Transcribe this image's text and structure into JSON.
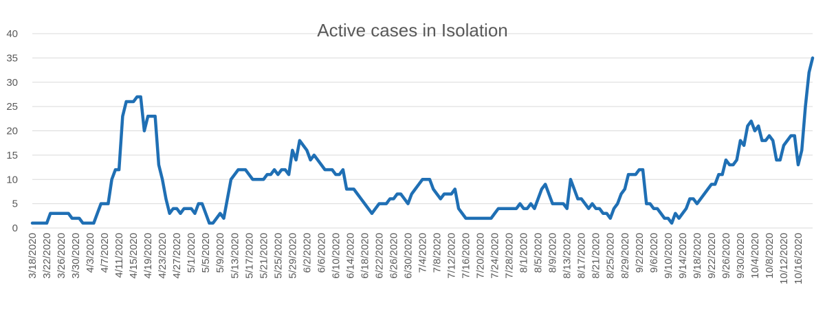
{
  "chart_data": {
    "type": "line",
    "title": "Active cases in Isolation",
    "xlabel": "",
    "ylabel": "",
    "ylim": [
      0,
      40
    ],
    "yticks": [
      "0",
      "5",
      "10",
      "15",
      "20",
      "25",
      "30",
      "35",
      "40"
    ],
    "grid": true,
    "legend": "none",
    "start_date": "2020-03-18",
    "tick_labels": [
      "3/18/2020",
      "3/22/2020",
      "3/26/2020",
      "3/30/2020",
      "4/3/2020",
      "4/7/2020",
      "4/11/2020",
      "4/15/2020",
      "4/19/2020",
      "4/23/2020",
      "4/27/2020",
      "5/1/2020",
      "5/5/2020",
      "5/9/2020",
      "5/13/2020",
      "5/17/2020",
      "5/21/2020",
      "5/25/2020",
      "5/29/2020",
      "6/2/2020",
      "6/6/2020",
      "6/10/2020",
      "6/14/2020",
      "6/18/2020",
      "6/22/2020",
      "6/26/2020",
      "6/30/2020",
      "7/4/2020",
      "7/8/2020",
      "7/12/2020",
      "7/16/2020",
      "7/20/2020",
      "7/24/2020",
      "7/28/2020",
      "8/1/2020",
      "8/5/2020",
      "8/9/2020",
      "8/13/2020",
      "8/17/2020",
      "8/21/2020",
      "8/25/2020",
      "8/29/2020",
      "9/2/2020",
      "9/6/2020",
      "9/10/2020",
      "9/14/2020",
      "9/18/2020",
      "9/22/2020",
      "9/26/2020",
      "9/30/2020",
      "10/4/2020",
      "10/8/2020",
      "10/12/2020",
      "10/16/2020"
    ],
    "series": [
      {
        "color": "#1f6fb4",
        "values": [
          1,
          1,
          1,
          1,
          1,
          3,
          3,
          3,
          3,
          3,
          3,
          2,
          2,
          2,
          1,
          1,
          1,
          1,
          3,
          5,
          5,
          5,
          10,
          12,
          12,
          23,
          26,
          26,
          26,
          27,
          27,
          20,
          23,
          23,
          23,
          13,
          10,
          6,
          3,
          4,
          4,
          3,
          4,
          4,
          4,
          3,
          5,
          5,
          3,
          1,
          1,
          2,
          3,
          2,
          6,
          10,
          11,
          12,
          12,
          12,
          11,
          10,
          10,
          10,
          10,
          11,
          11,
          12,
          11,
          12,
          12,
          11,
          16,
          14,
          18,
          17,
          16,
          14,
          15,
          14,
          13,
          12,
          12,
          12,
          11,
          11,
          12,
          8,
          8,
          8,
          7,
          6,
          5,
          4,
          3,
          4,
          5,
          5,
          5,
          6,
          6,
          7,
          7,
          6,
          5,
          7,
          8,
          9,
          10,
          10,
          10,
          8,
          7,
          6,
          7,
          7,
          7,
          8,
          4,
          3,
          2,
          2,
          2,
          2,
          2,
          2,
          2,
          2,
          3,
          4,
          4,
          4,
          4,
          4,
          4,
          5,
          4,
          4,
          5,
          4,
          6,
          8,
          9,
          7,
          5,
          5,
          5,
          5,
          4,
          10,
          8,
          6,
          6,
          5,
          4,
          5,
          4,
          4,
          3,
          3,
          2,
          4,
          5,
          7,
          8,
          11,
          11,
          11,
          12,
          12,
          5,
          5,
          4,
          4,
          3,
          2,
          2,
          1,
          3,
          2,
          3,
          4,
          6,
          6,
          5,
          6,
          7,
          8,
          9,
          9,
          11,
          11,
          14,
          13,
          13,
          14,
          18,
          17,
          21,
          22,
          20,
          21,
          18,
          18,
          19,
          18,
          14,
          14,
          17,
          18,
          19,
          19,
          13,
          16,
          25,
          32,
          35
        ]
      }
    ]
  }
}
